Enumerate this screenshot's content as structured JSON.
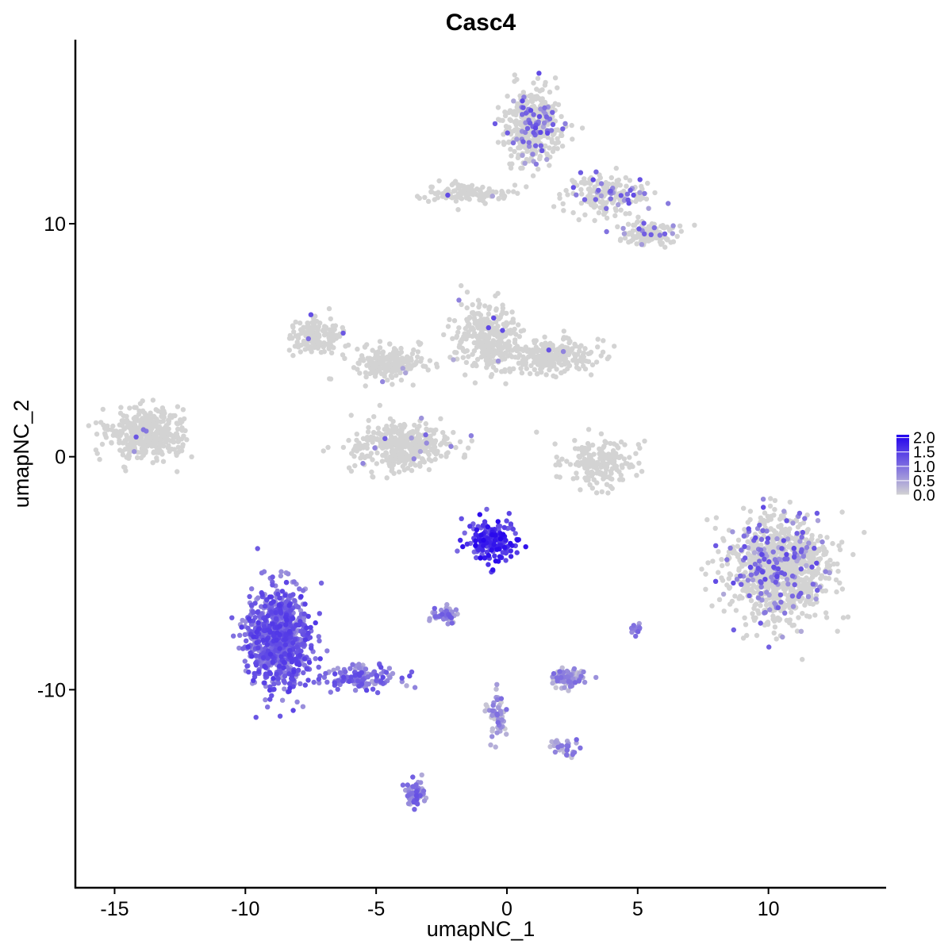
{
  "chart_data": {
    "type": "scatter",
    "title": "Casc4",
    "xlabel": "umapNC_1",
    "ylabel": "umapNC_2",
    "xlim": [
      -16.5,
      14.5
    ],
    "ylim": [
      -18.5,
      17.9
    ],
    "xticks": [
      -15,
      -10,
      -5,
      0,
      5,
      10
    ],
    "xtick_labels": [
      "-15",
      "-10",
      "-5",
      "0",
      "5",
      "10"
    ],
    "yticks": [
      -10,
      0,
      10
    ],
    "ytick_labels": [
      "-10",
      "0",
      "10"
    ],
    "grid": false,
    "legend_position": "right",
    "color_scale": {
      "low_color": "#d3d3d3",
      "high_color": "#2200ee",
      "min": 0,
      "max": 2.1,
      "ticks": [
        0.0,
        0.5,
        1.0,
        1.5,
        2.0
      ],
      "tick_labels": [
        "0.0",
        "0.5",
        "1.0",
        "1.5",
        "2.0"
      ]
    },
    "clusters": [
      {
        "center": [
          1.0,
          14.2
        ],
        "spread": [
          0.9,
          1.3
        ],
        "n": 420,
        "expr": 0.08
      },
      {
        "center": [
          -1.5,
          11.3
        ],
        "spread": [
          1.2,
          0.3
        ],
        "n": 130,
        "expr": 0.02
      },
      {
        "center": [
          4.0,
          11.2
        ],
        "spread": [
          1.5,
          0.8
        ],
        "n": 180,
        "expr": 0.1
      },
      {
        "center": [
          5.5,
          9.6
        ],
        "spread": [
          0.9,
          0.4
        ],
        "n": 140,
        "expr": 0.08
      },
      {
        "center": [
          -7.2,
          5.2
        ],
        "spread": [
          0.8,
          0.6
        ],
        "n": 160,
        "expr": 0.02
      },
      {
        "center": [
          -4.6,
          4.0
        ],
        "spread": [
          1.2,
          0.6
        ],
        "n": 200,
        "expr": 0.01
      },
      {
        "center": [
          -4.0,
          0.4
        ],
        "spread": [
          1.6,
          0.8
        ],
        "n": 420,
        "expr": 0.03
      },
      {
        "center": [
          -0.8,
          5.0
        ],
        "spread": [
          1.1,
          1.2
        ],
        "n": 300,
        "expr": 0.01
      },
      {
        "center": [
          1.8,
          4.3
        ],
        "spread": [
          1.5,
          0.6
        ],
        "n": 260,
        "expr": 0.01
      },
      {
        "center": [
          -13.8,
          1.0
        ],
        "spread": [
          1.2,
          0.8
        ],
        "n": 420,
        "expr": 0.01
      },
      {
        "center": [
          3.5,
          -0.2
        ],
        "spread": [
          1.2,
          0.9
        ],
        "n": 190,
        "expr": 0.0
      },
      {
        "center": [
          10.4,
          -4.8
        ],
        "spread": [
          1.6,
          1.8
        ],
        "n": 1000,
        "expr": 0.1
      },
      {
        "center": [
          -0.5,
          -3.6
        ],
        "spread": [
          0.8,
          0.8
        ],
        "n": 180,
        "expr": 1.5
      },
      {
        "center": [
          -8.7,
          -7.8
        ],
        "spread": [
          1.0,
          1.7
        ],
        "n": 900,
        "expr": 1.0
      },
      {
        "center": [
          -5.5,
          -9.5
        ],
        "spread": [
          1.2,
          0.4
        ],
        "n": 140,
        "expr": 0.85
      },
      {
        "center": [
          -2.4,
          -6.8
        ],
        "spread": [
          0.4,
          0.3
        ],
        "n": 50,
        "expr": 0.7
      },
      {
        "center": [
          2.4,
          -9.5
        ],
        "spread": [
          0.6,
          0.3
        ],
        "n": 90,
        "expr": 0.5
      },
      {
        "center": [
          -0.4,
          -11.0
        ],
        "spread": [
          0.3,
          0.9
        ],
        "n": 60,
        "expr": 0.5
      },
      {
        "center": [
          -3.5,
          -14.5
        ],
        "spread": [
          0.3,
          0.5
        ],
        "n": 60,
        "expr": 0.75
      },
      {
        "center": [
          2.2,
          -12.5
        ],
        "spread": [
          0.4,
          0.3
        ],
        "n": 30,
        "expr": 0.6
      },
      {
        "center": [
          5.0,
          -7.4
        ],
        "spread": [
          0.2,
          0.2
        ],
        "n": 12,
        "expr": 0.6
      }
    ]
  }
}
